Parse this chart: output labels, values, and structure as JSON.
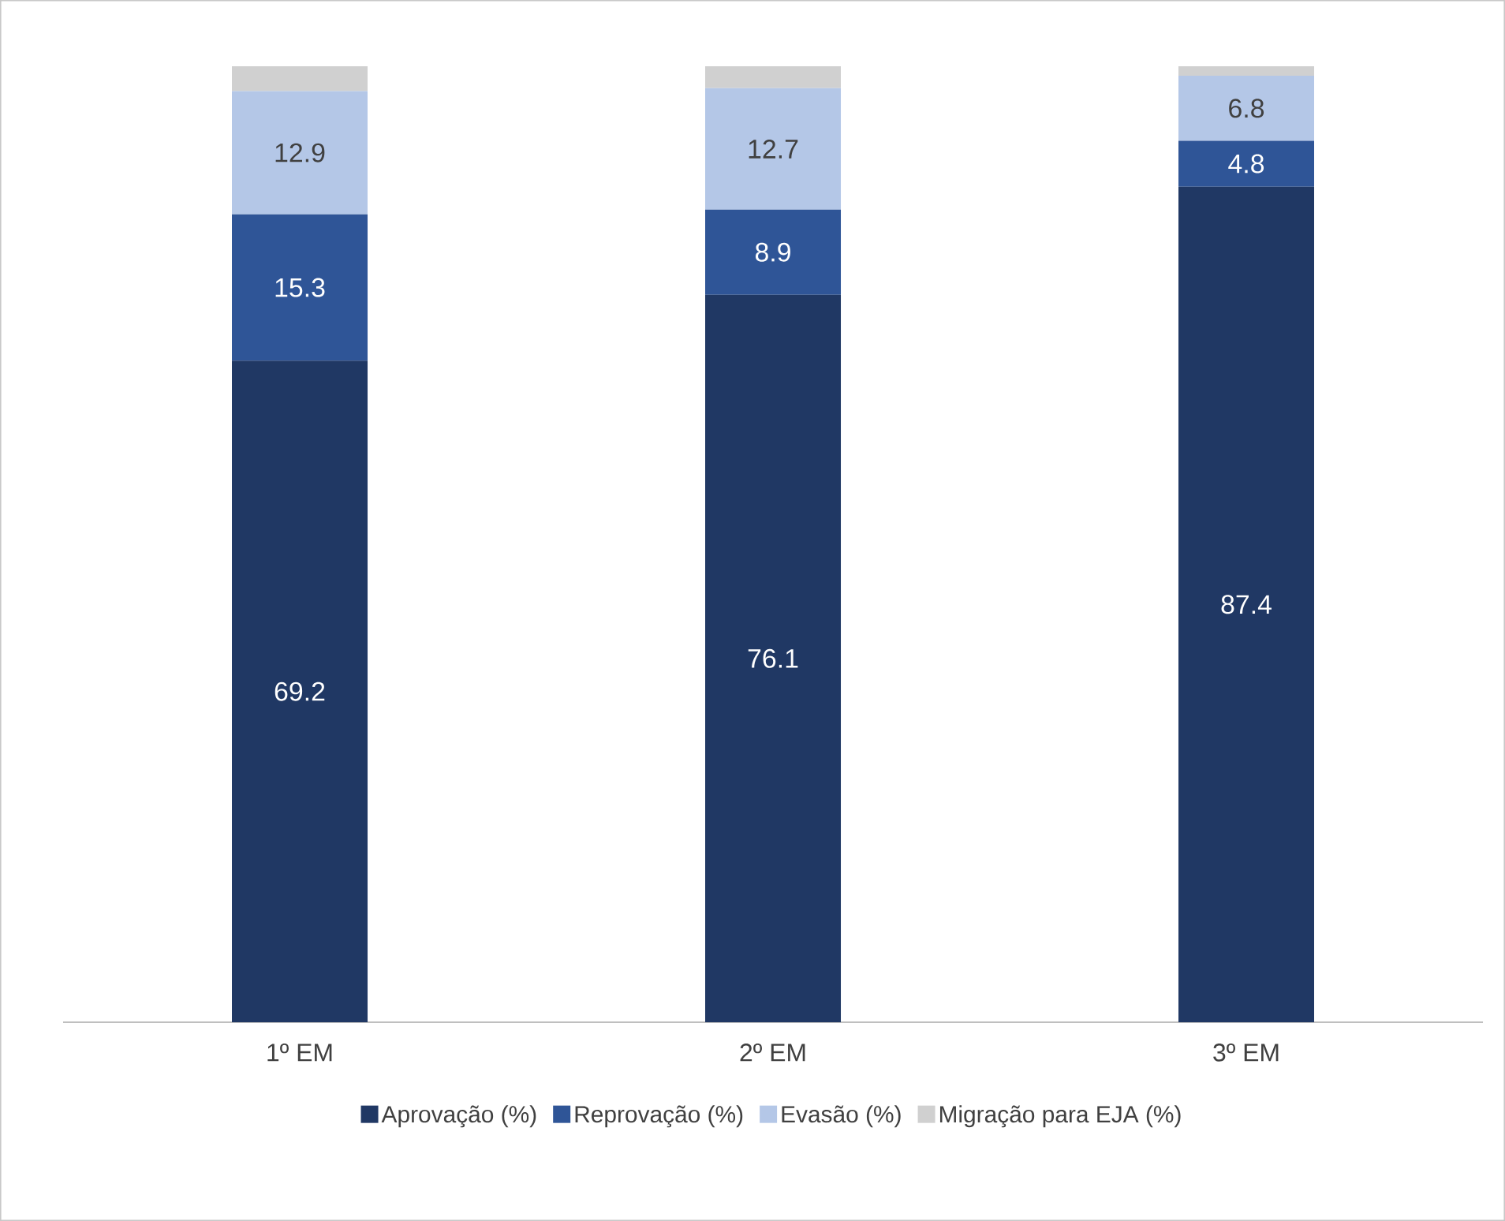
{
  "chart_data": {
    "type": "bar",
    "stacked": true,
    "categories": [
      "1º EM",
      "2º EM",
      "3º EM"
    ],
    "tick_labels": "x",
    "legend": "bottom",
    "series": [
      {
        "name": "Aprovação (%)",
        "color": "#203864",
        "values": [
          69.2,
          76.1,
          87.4
        ],
        "value_labels": [
          "69.2",
          "76.1",
          "87.4"
        ]
      },
      {
        "name": "Reprovação (%)",
        "color": "#2f5597",
        "values": [
          15.3,
          8.9,
          4.8
        ],
        "value_labels": [
          "15.3",
          "8.9",
          "4.8"
        ]
      },
      {
        "name": "Evasão (%)",
        "color": "#b4c7e7",
        "values": [
          12.9,
          12.7,
          6.8
        ],
        "value_labels": [
          "12.9",
          "12.7",
          "6.8"
        ]
      },
      {
        "name": "Migração para EJA (%)",
        "color": "#d0d0d0",
        "values": [
          2.6,
          2.3,
          1.0
        ],
        "value_labels": [
          null,
          null,
          null
        ]
      }
    ]
  }
}
